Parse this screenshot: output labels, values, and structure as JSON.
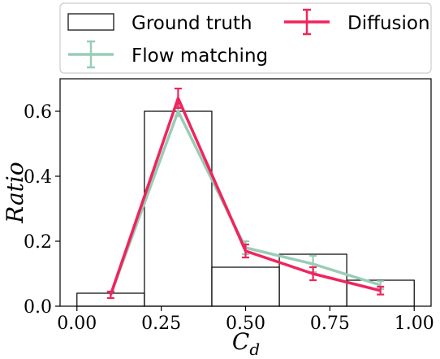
{
  "chart_data": {
    "type": "bar",
    "xlabel": "C",
    "xlabel_subscript": "d",
    "ylabel": "Ratio",
    "xlim": [
      -0.05,
      1.05
    ],
    "ylim": [
      0,
      0.7
    ],
    "x_ticks": [
      0.0,
      0.25,
      0.5,
      0.75,
      1.0
    ],
    "x_tick_labels": [
      "0.00",
      "0.25",
      "0.50",
      "0.75",
      "1.00"
    ],
    "y_ticks": [
      0.0,
      0.2,
      0.4,
      0.6
    ],
    "y_tick_labels": [
      "0.0",
      "0.2",
      "0.4",
      "0.6"
    ],
    "legend_position": "top",
    "histogram": {
      "name": "Ground truth",
      "bin_edges": [
        0.0,
        0.2,
        0.4,
        0.6,
        0.8,
        1.0
      ],
      "values": [
        0.04,
        0.6,
        0.12,
        0.16,
        0.08
      ],
      "color": "#000000"
    },
    "series": [
      {
        "name": "Flow matching",
        "color": "#98CDB6",
        "x": [
          0.1,
          0.3,
          0.5,
          0.7,
          0.9
        ],
        "y": [
          0.035,
          0.6,
          0.18,
          0.13,
          0.065
        ],
        "err": [
          0.01,
          0.015,
          0.02,
          0.025,
          0.012
        ]
      },
      {
        "name": "Diffusion",
        "color": "#F0245D",
        "x": [
          0.1,
          0.3,
          0.5,
          0.7,
          0.9
        ],
        "y": [
          0.035,
          0.64,
          0.17,
          0.1,
          0.048
        ],
        "err": [
          0.01,
          0.03,
          0.02,
          0.02,
          0.012
        ]
      }
    ]
  }
}
